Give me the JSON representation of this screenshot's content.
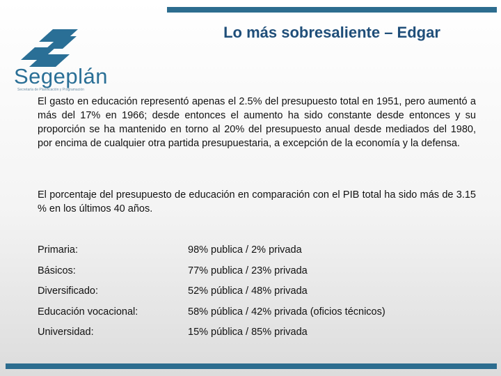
{
  "colors": {
    "accent_bar": "#2d6d8f",
    "title": "#1f4e79",
    "logo_blue": "#2a6f96",
    "logo_tag": "#6d8da3"
  },
  "logo": {
    "word": "Segeplán",
    "tagline": "Secretaría de Planificación y Programación"
  },
  "slide": {
    "title": "Lo más sobresaliente – Edgar",
    "paragraph1": "El gasto en educación representó apenas el 2.5% del presupuesto total en 1951, pero aumentó a más del 17% en 1966; desde entonces el aumento ha sido constante desde entonces y su proporción se ha mantenido en torno al 20% del presupuesto anual desde mediados del 1980, por encima de cualquier otra partida presupuestaria, a excepción de la economía y la defensa.",
    "paragraph2": "El porcentaje del presupuesto de educación en comparación con el PIB total ha sido más de 3.15 % en los últimos 40 años."
  },
  "table": {
    "rows": [
      {
        "label": "Primaria:",
        "value": "98% publica  /  2% privada"
      },
      {
        "label": "Básicos:",
        "value": "77% publica  /  23% privada"
      },
      {
        "label": "Diversificado:",
        "value": "52% pública  /  48% privada"
      },
      {
        "label": "Educación vocacional:",
        "value": "58% pública  /  42% privada  (oficios técnicos)"
      },
      {
        "label": "Universidad:",
        "value": "15% pública  /  85% privada"
      }
    ]
  }
}
